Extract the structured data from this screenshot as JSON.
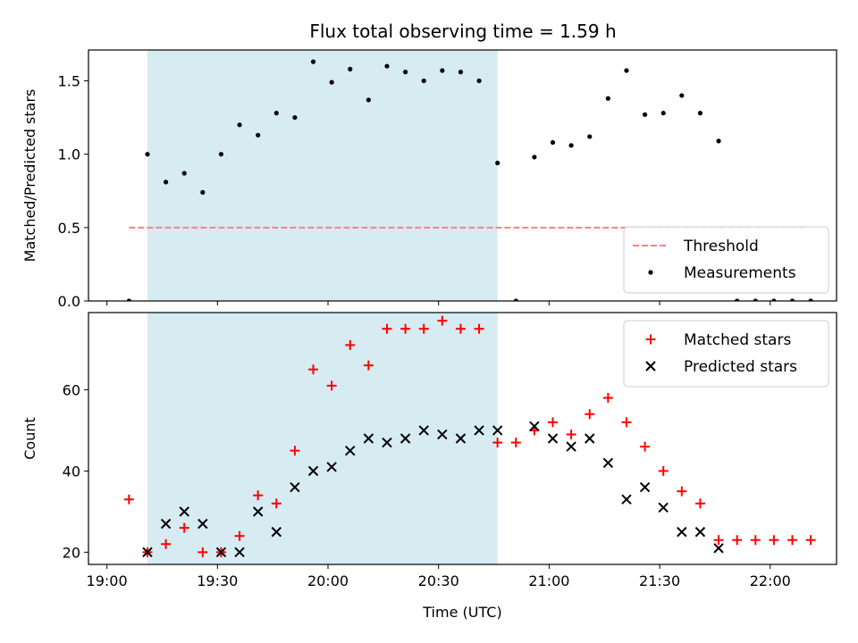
{
  "title": "Flux total observing time = 1.59 h",
  "colors": {
    "shade": "#add8e6",
    "threshold": "#ff7f7f",
    "matched": "#ff0000",
    "predicted": "#000000",
    "measurements": "#000000"
  },
  "chart_data": [
    {
      "type": "scatter",
      "ylabel": "Matched/Predicted stars",
      "xlabel": "",
      "x_axis": "time",
      "xlim": [
        "18:55",
        "22:18"
      ],
      "ylim": [
        0,
        1.71
      ],
      "yticks": [
        0.0,
        0.5,
        1.0,
        1.5
      ],
      "ytick_labels": [
        "0.0",
        "0.5",
        "1.0",
        "1.5"
      ],
      "shaded_interval": [
        "19:11",
        "20:46"
      ],
      "grid": false,
      "legend_position": "lower-right",
      "threshold": {
        "name": "Threshold",
        "value": 0.5,
        "x_range": [
          "19:06",
          "22:10"
        ]
      },
      "series": [
        {
          "name": "Measurements",
          "x": [
            "19:06",
            "19:11",
            "19:16",
            "19:21",
            "19:26",
            "19:31",
            "19:36",
            "19:41",
            "19:46",
            "19:51",
            "19:56",
            "20:01",
            "20:06",
            "20:11",
            "20:16",
            "20:21",
            "20:26",
            "20:31",
            "20:36",
            "20:41",
            "20:46",
            "20:51",
            "20:56",
            "21:01",
            "21:06",
            "21:11",
            "21:16",
            "21:21",
            "21:26",
            "21:31",
            "21:36",
            "21:41",
            "21:46",
            "21:51",
            "21:56",
            "22:01",
            "22:06",
            "22:11"
          ],
          "y": [
            0.0,
            1.0,
            0.81,
            0.87,
            0.74,
            1.0,
            1.2,
            1.13,
            1.28,
            1.25,
            1.63,
            1.49,
            1.58,
            1.37,
            1.6,
            1.56,
            1.5,
            1.57,
            1.56,
            1.5,
            0.94,
            0.0,
            0.98,
            1.08,
            1.06,
            1.12,
            1.38,
            1.57,
            1.27,
            1.28,
            1.4,
            1.28,
            1.09,
            0.0,
            0.0,
            0.0,
            0.0,
            0.0
          ]
        }
      ]
    },
    {
      "type": "scatter",
      "ylabel": "Count",
      "xlabel": "Time (UTC)",
      "x_axis": "time",
      "xlim": [
        "18:55",
        "22:18"
      ],
      "ylim": [
        17,
        79
      ],
      "yticks": [
        20,
        40,
        60
      ],
      "ytick_labels": [
        "20",
        "40",
        "60"
      ],
      "xticks": [
        "19:00",
        "19:30",
        "20:00",
        "20:30",
        "21:00",
        "21:30",
        "22:00"
      ],
      "xtick_labels": [
        "19:00",
        "19:30",
        "20:00",
        "20:30",
        "21:00",
        "21:30",
        "22:00"
      ],
      "shaded_interval": [
        "19:11",
        "20:46"
      ],
      "grid": false,
      "legend_position": "top-right",
      "series": [
        {
          "name": "Matched stars",
          "marker": "plus",
          "x": [
            "19:06",
            "19:11",
            "19:16",
            "19:21",
            "19:26",
            "19:31",
            "19:36",
            "19:41",
            "19:46",
            "19:51",
            "19:56",
            "20:01",
            "20:06",
            "20:11",
            "20:16",
            "20:21",
            "20:26",
            "20:31",
            "20:36",
            "20:41",
            "20:46",
            "20:51",
            "20:56",
            "21:01",
            "21:06",
            "21:11",
            "21:16",
            "21:21",
            "21:26",
            "21:31",
            "21:36",
            "21:41",
            "21:46",
            "21:51",
            "21:56",
            "22:01",
            "22:06",
            "22:11"
          ],
          "y": [
            33,
            20,
            22,
            26,
            20,
            20,
            24,
            34,
            32,
            45,
            65,
            61,
            71,
            66,
            75,
            75,
            75,
            77,
            75,
            75,
            47,
            47,
            50,
            52,
            49,
            54,
            58,
            52,
            46,
            40,
            35,
            32,
            23,
            23,
            23,
            23,
            23,
            23
          ]
        },
        {
          "name": "Predicted stars",
          "marker": "x",
          "x": [
            "19:11",
            "19:16",
            "19:21",
            "19:26",
            "19:31",
            "19:36",
            "19:41",
            "19:46",
            "19:51",
            "19:56",
            "20:01",
            "20:06",
            "20:11",
            "20:16",
            "20:21",
            "20:26",
            "20:31",
            "20:36",
            "20:41",
            "20:46",
            "20:56",
            "21:01",
            "21:06",
            "21:11",
            "21:16",
            "21:21",
            "21:26",
            "21:31",
            "21:36",
            "21:41",
            "21:46"
          ],
          "y": [
            20,
            27,
            30,
            27,
            20,
            20,
            30,
            25,
            36,
            40,
            41,
            45,
            48,
            47,
            48,
            50,
            49,
            48,
            50,
            50,
            51,
            48,
            46,
            48,
            42,
            33,
            36,
            31,
            25,
            25,
            21
          ]
        }
      ]
    }
  ]
}
